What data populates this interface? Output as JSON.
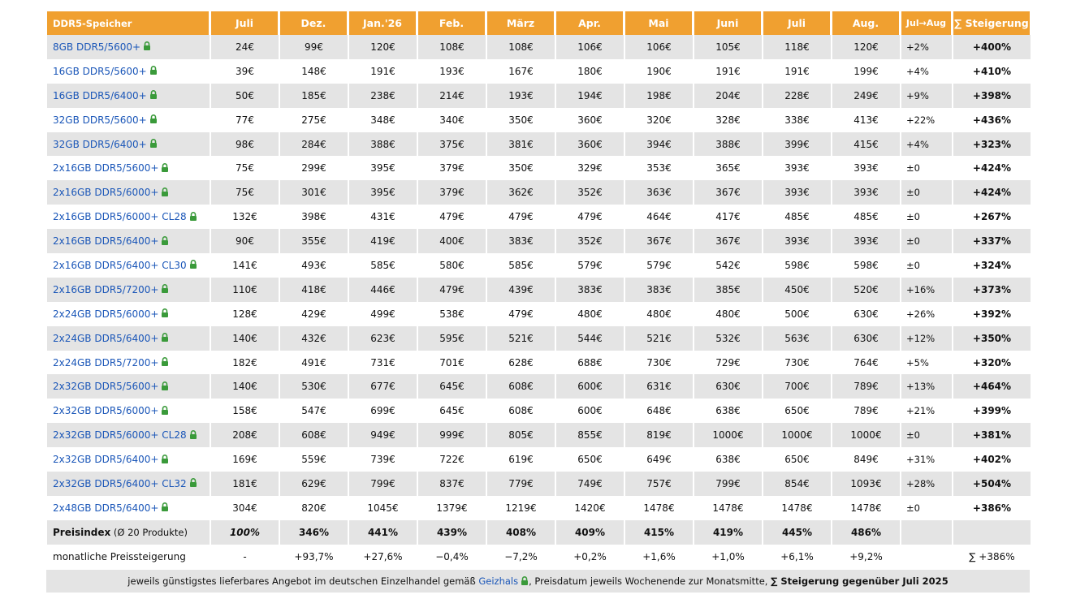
{
  "header": [
    "DDR5-Speicher",
    "Juli",
    "Dez.",
    "Jan.'26",
    "Feb.",
    "März",
    "Apr.",
    "Mai",
    "Juni",
    "Juli",
    "Aug.",
    "Jul→Aug",
    "∑ Steigerung"
  ],
  "rows": [
    {
      "name": "8GB DDR5/5600+",
      "values": [
        "24€",
        "99€",
        "120€",
        "108€",
        "108€",
        "106€",
        "106€",
        "105€",
        "118€",
        "120€"
      ],
      "change": "+2%",
      "total": "+400%"
    },
    {
      "name": "16GB DDR5/5600+",
      "values": [
        "39€",
        "148€",
        "191€",
        "193€",
        "167€",
        "180€",
        "190€",
        "191€",
        "191€",
        "199€"
      ],
      "change": "+4%",
      "total": "+410%"
    },
    {
      "name": "16GB DDR5/6400+",
      "values": [
        "50€",
        "185€",
        "238€",
        "214€",
        "193€",
        "194€",
        "198€",
        "204€",
        "228€",
        "249€"
      ],
      "change": "+9%",
      "total": "+398%"
    },
    {
      "name": "32GB DDR5/5600+",
      "values": [
        "77€",
        "275€",
        "348€",
        "340€",
        "350€",
        "360€",
        "320€",
        "328€",
        "338€",
        "413€"
      ],
      "change": "+22%",
      "total": "+436%"
    },
    {
      "name": "32GB DDR5/6400+",
      "values": [
        "98€",
        "284€",
        "388€",
        "375€",
        "381€",
        "360€",
        "394€",
        "388€",
        "399€",
        "415€"
      ],
      "change": "+4%",
      "total": "+323%"
    },
    {
      "name": "2x16GB DDR5/5600+",
      "values": [
        "75€",
        "299€",
        "395€",
        "379€",
        "350€",
        "329€",
        "353€",
        "365€",
        "393€",
        "393€"
      ],
      "change": "±0",
      "total": "+424%"
    },
    {
      "name": "2x16GB DDR5/6000+",
      "values": [
        "75€",
        "301€",
        "395€",
        "379€",
        "362€",
        "352€",
        "363€",
        "367€",
        "393€",
        "393€"
      ],
      "change": "±0",
      "total": "+424%"
    },
    {
      "name": "2x16GB DDR5/6000+ CL28",
      "values": [
        "132€",
        "398€",
        "431€",
        "479€",
        "479€",
        "479€",
        "464€",
        "417€",
        "485€",
        "485€"
      ],
      "change": "±0",
      "total": "+267%"
    },
    {
      "name": "2x16GB DDR5/6400+",
      "values": [
        "90€",
        "355€",
        "419€",
        "400€",
        "383€",
        "352€",
        "367€",
        "367€",
        "393€",
        "393€"
      ],
      "change": "±0",
      "total": "+337%"
    },
    {
      "name": "2x16GB DDR5/6400+ CL30",
      "values": [
        "141€",
        "493€",
        "585€",
        "580€",
        "585€",
        "579€",
        "579€",
        "542€",
        "598€",
        "598€"
      ],
      "change": "±0",
      "total": "+324%"
    },
    {
      "name": "2x16GB DDR5/7200+",
      "values": [
        "110€",
        "418€",
        "446€",
        "479€",
        "439€",
        "383€",
        "383€",
        "385€",
        "450€",
        "520€"
      ],
      "change": "+16%",
      "total": "+373%"
    },
    {
      "name": "2x24GB DDR5/6000+",
      "values": [
        "128€",
        "429€",
        "499€",
        "538€",
        "479€",
        "480€",
        "480€",
        "480€",
        "500€",
        "630€"
      ],
      "change": "+26%",
      "total": "+392%"
    },
    {
      "name": "2x24GB DDR5/6400+",
      "values": [
        "140€",
        "432€",
        "623€",
        "595€",
        "521€",
        "544€",
        "521€",
        "532€",
        "563€",
        "630€"
      ],
      "change": "+12%",
      "total": "+350%"
    },
    {
      "name": "2x24GB DDR5/7200+",
      "values": [
        "182€",
        "491€",
        "731€",
        "701€",
        "628€",
        "688€",
        "730€",
        "729€",
        "730€",
        "764€"
      ],
      "change": "+5%",
      "total": "+320%"
    },
    {
      "name": "2x32GB DDR5/5600+",
      "values": [
        "140€",
        "530€",
        "677€",
        "645€",
        "608€",
        "600€",
        "631€",
        "630€",
        "700€",
        "789€"
      ],
      "change": "+13%",
      "total": "+464%"
    },
    {
      "name": "2x32GB DDR5/6000+",
      "values": [
        "158€",
        "547€",
        "699€",
        "645€",
        "608€",
        "600€",
        "648€",
        "638€",
        "650€",
        "789€"
      ],
      "change": "+21%",
      "total": "+399%"
    },
    {
      "name": "2x32GB DDR5/6000+ CL28",
      "values": [
        "208€",
        "608€",
        "949€",
        "999€",
        "805€",
        "855€",
        "819€",
        "1000€",
        "1000€",
        "1000€"
      ],
      "change": "±0",
      "total": "+381%"
    },
    {
      "name": "2x32GB DDR5/6400+",
      "values": [
        "169€",
        "559€",
        "739€",
        "722€",
        "619€",
        "650€",
        "649€",
        "638€",
        "650€",
        "849€"
      ],
      "change": "+31%",
      "total": "+402%"
    },
    {
      "name": "2x32GB DDR5/6400+ CL32",
      "values": [
        "181€",
        "629€",
        "799€",
        "837€",
        "779€",
        "749€",
        "757€",
        "799€",
        "854€",
        "1093€"
      ],
      "change": "+28%",
      "total": "+504%"
    },
    {
      "name": "2x48GB DDR5/6400+",
      "values": [
        "304€",
        "820€",
        "1045€",
        "1379€",
        "1219€",
        "1420€",
        "1478€",
        "1478€",
        "1478€",
        "1478€"
      ],
      "change": "±0",
      "total": "+386%"
    }
  ],
  "index_row": {
    "label": "Preisindex",
    "label_suffix": " (Ø 20 Produkte)",
    "values": [
      "100%",
      "346%",
      "441%",
      "439%",
      "408%",
      "409%",
      "415%",
      "419%",
      "445%",
      "486%"
    ],
    "change": "",
    "total": ""
  },
  "monthly_row": {
    "label": "monatliche Preissteigerung",
    "values": [
      "-",
      "+93,7%",
      "+27,6%",
      "−0,4%",
      "−7,2%",
      "+0,2%",
      "+1,6%",
      "+1,0%",
      "+6,1%",
      "+9,2%"
    ],
    "change": "",
    "total": "∑ +386%"
  },
  "footer": {
    "text_before": "jeweils günstigstes lieferbares Angebot im deutschen Einzelhandel gemäß ",
    "link": "Geizhals",
    "text_middle": ", Preisdatum jeweils Wochenende zur Monatsmitte, ",
    "text_bold": "∑ Steigerung gegenüber Juli 2025"
  },
  "colors": {
    "header": "#f0a030",
    "link": "#1a56b8",
    "lock": "#3a9a3a",
    "alt_row": "#e4e4e4"
  }
}
